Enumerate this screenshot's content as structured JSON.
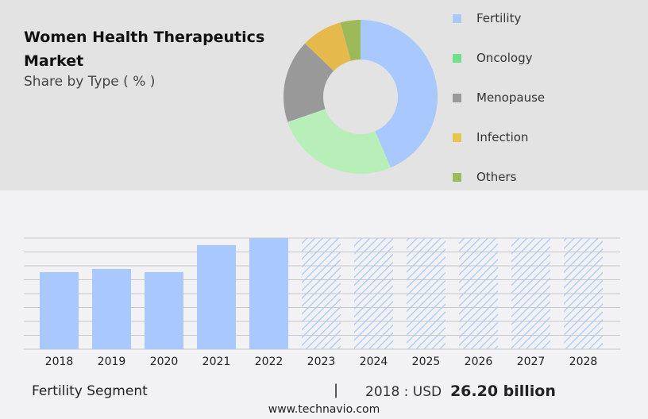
{
  "title": "Women Health Therapeutics Market",
  "subtitle": "Share by Type ( % )",
  "chart_data": [
    {
      "type": "pie",
      "style": "donut",
      "categories": [
        "Fertility",
        "Oncology",
        "Menopause",
        "Infection",
        "Others"
      ],
      "values": [
        43.6,
        26.1,
        17.5,
        8.6,
        4.2
      ],
      "colors": [
        "#a8c8fe",
        "#b8eeb8",
        "#999999",
        "#e6b94c",
        "#9dba5a"
      ],
      "legend_colors": [
        "#a8c8fe",
        "#6ee08e",
        "#999999",
        "#e6c450",
        "#9dba5a"
      ],
      "legend": "right"
    },
    {
      "type": "bar",
      "categories": [
        "2018",
        "2019",
        "2020",
        "2021",
        "2022",
        "2023",
        "2024",
        "2025",
        "2026",
        "2027",
        "2028"
      ],
      "values": [
        26.2,
        27.3,
        26.2,
        35.4,
        37.8,
        null,
        null,
        null,
        null,
        null,
        null
      ],
      "forecast_hatched": [
        "2023",
        "2024",
        "2025",
        "2026",
        "2027",
        "2028"
      ],
      "color": "#a8c8fe",
      "grid": true,
      "ylim": [
        0,
        37.8
      ]
    }
  ],
  "footer": {
    "segment": "Fertility Segment",
    "separator": "|",
    "year_label": "2018 : USD",
    "value": "26.20 billion",
    "url": "www.technavio.com"
  }
}
